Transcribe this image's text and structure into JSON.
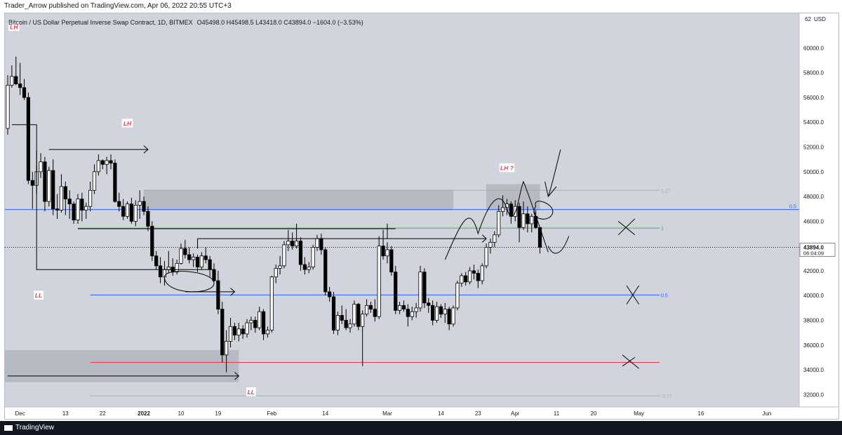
{
  "header": {
    "published": "Trader_Arrow published on TradingView.com, Apr 06, 2022 20:55 UTC+3"
  },
  "chart_data": {
    "type": "candlestick",
    "title": "Bitcoin / US Dollar Perpetual Inverse Swap Contract, 1D, BITMEX",
    "ohlc_text": "O45498.0 H45498.5 L43418.0 C43894.0 −1604.0 (−3.53%)",
    "currency": "USD",
    "price_axis_top_label": "62",
    "y_ticks": [
      60000,
      58000,
      56000,
      54000,
      52000,
      50000,
      48000,
      46000,
      44000,
      42000,
      40000,
      38000,
      36000,
      34000,
      32000
    ],
    "ylim": [
      31000,
      62800
    ],
    "x_ticks": [
      {
        "label": "Dec",
        "bar": 3,
        "bold": false
      },
      {
        "label": "13",
        "bar": 14,
        "bold": false
      },
      {
        "label": "22",
        "bar": 23,
        "bold": false
      },
      {
        "label": "2022",
        "bar": 33,
        "bold": true
      },
      {
        "label": "10",
        "bar": 42,
        "bold": false
      },
      {
        "label": "19",
        "bar": 51,
        "bold": false
      },
      {
        "label": "Feb",
        "bar": 64,
        "bold": false
      },
      {
        "label": "14",
        "bar": 77,
        "bold": false
      },
      {
        "label": "Mar",
        "bar": 92,
        "bold": false
      },
      {
        "label": "14",
        "bar": 105,
        "bold": false
      },
      {
        "label": "23",
        "bar": 114,
        "bold": false
      },
      {
        "label": "Apr",
        "bar": 123,
        "bold": false
      },
      {
        "label": "11",
        "bar": 133,
        "bold": false
      },
      {
        "label": "20",
        "bar": 142,
        "bold": false
      },
      {
        "label": "May",
        "bar": 153,
        "bold": false
      },
      {
        "label": "16",
        "bar": 168,
        "bold": false
      },
      {
        "label": "Jun",
        "bar": 184,
        "bold": false
      }
    ],
    "last_price": {
      "value": 43894,
      "label": "43894.0",
      "countdown": "06:04:09"
    },
    "candles": [
      [
        53500,
        57800,
        53000,
        57000
      ],
      [
        57000,
        58600,
        56800,
        57700
      ],
      [
        57700,
        59300,
        57000,
        57100
      ],
      [
        57100,
        58800,
        56200,
        56800
      ],
      [
        56800,
        57500,
        55800,
        56000
      ],
      [
        56000,
        56400,
        49000,
        49300
      ],
      [
        49300,
        50000,
        47000,
        48900
      ],
      [
        48900,
        50500,
        48200,
        50000
      ],
      [
        50000,
        51500,
        49500,
        50800
      ],
      [
        50800,
        51200,
        46800,
        47600
      ],
      [
        47600,
        50400,
        47200,
        50100
      ],
      [
        50100,
        51000,
        46500,
        47000
      ],
      [
        47000,
        48200,
        46200,
        46900
      ],
      [
        46900,
        49800,
        46700,
        48800
      ],
      [
        48800,
        49200,
        46500,
        47800
      ],
      [
        47800,
        48500,
        46200,
        47400
      ],
      [
        47400,
        47600,
        45800,
        46100
      ],
      [
        46100,
        48200,
        45800,
        47800
      ],
      [
        47800,
        48300,
        46000,
        46900
      ],
      [
        46900,
        47500,
        46200,
        47200
      ],
      [
        47200,
        49200,
        46800,
        48500
      ],
      [
        48500,
        50600,
        48200,
        50000
      ],
      [
        50000,
        51400,
        49700,
        50900
      ],
      [
        50900,
        51000,
        50200,
        50600
      ],
      [
        50600,
        51200,
        49800,
        50900
      ],
      [
        50900,
        51400,
        50200,
        50700
      ],
      [
        50700,
        51000,
        47500,
        47600
      ],
      [
        47600,
        48300,
        46800,
        47200
      ],
      [
        47200,
        47800,
        46100,
        46400
      ],
      [
        46400,
        47600,
        46200,
        47400
      ],
      [
        47400,
        47900,
        45800,
        46000
      ],
      [
        46000,
        47700,
        45600,
        47300
      ],
      [
        47300,
        48500,
        46200,
        47600
      ],
      [
        47600,
        48000,
        46500,
        46800
      ],
      [
        46800,
        47200,
        45200,
        45600
      ],
      [
        45600,
        46000,
        42800,
        43200
      ],
      [
        43200,
        43600,
        42100,
        42400
      ],
      [
        42400,
        43100,
        41000,
        41500
      ],
      [
        41500,
        42800,
        40800,
        42100
      ],
      [
        42100,
        43600,
        41800,
        42300
      ],
      [
        42300,
        43000,
        41600,
        41900
      ],
      [
        41900,
        42900,
        41700,
        42600
      ],
      [
        42600,
        44200,
        42500,
        43800
      ],
      [
        43800,
        44500,
        43000,
        43300
      ],
      [
        43300,
        43900,
        42600,
        42900
      ],
      [
        42900,
        43400,
        42300,
        43100
      ],
      [
        43100,
        43300,
        41900,
        42300
      ],
      [
        42300,
        43500,
        42100,
        43200
      ],
      [
        43200,
        43900,
        42600,
        42900
      ],
      [
        42900,
        43200,
        41500,
        42100
      ],
      [
        42100,
        42600,
        41000,
        41200
      ],
      [
        41200,
        42000,
        38500,
        38900
      ],
      [
        38900,
        39500,
        34600,
        35200
      ],
      [
        35200,
        37200,
        33800,
        36300
      ],
      [
        36300,
        38200,
        35800,
        37500
      ],
      [
        37500,
        37800,
        36400,
        36800
      ],
      [
        36800,
        37800,
        36300,
        37300
      ],
      [
        37300,
        37600,
        36500,
        36900
      ],
      [
        36900,
        38100,
        36600,
        37800
      ],
      [
        37800,
        38300,
        37200,
        38000
      ],
      [
        38000,
        38300,
        37000,
        37400
      ],
      [
        37400,
        39100,
        37200,
        38700
      ],
      [
        38700,
        38900,
        36400,
        36900
      ],
      [
        36900,
        37500,
        36600,
        37200
      ],
      [
        37200,
        41600,
        37000,
        41500
      ],
      [
        41500,
        42500,
        41000,
        42200
      ],
      [
        42200,
        43200,
        41700,
        42400
      ],
      [
        42400,
        44400,
        42200,
        44100
      ],
      [
        44100,
        45300,
        43600,
        44400
      ],
      [
        44400,
        45100,
        43700,
        44000
      ],
      [
        44000,
        45800,
        43800,
        44400
      ],
      [
        44400,
        44700,
        42000,
        42500
      ],
      [
        42500,
        43100,
        41700,
        42100
      ],
      [
        42100,
        42700,
        41800,
        42300
      ],
      [
        42300,
        44100,
        42100,
        43900
      ],
      [
        43900,
        44900,
        43600,
        44600
      ],
      [
        44600,
        45000,
        43300,
        43700
      ],
      [
        43700,
        43900,
        40000,
        40300
      ],
      [
        40300,
        40700,
        39500,
        39900
      ],
      [
        39900,
        40300,
        36900,
        37200
      ],
      [
        37200,
        38700,
        36800,
        38400
      ],
      [
        38400,
        39200,
        37700,
        38000
      ],
      [
        38000,
        38900,
        37200,
        37400
      ],
      [
        37400,
        38100,
        37000,
        37700
      ],
      [
        37700,
        39600,
        37500,
        39300
      ],
      [
        39300,
        39400,
        37200,
        37500
      ],
      [
        37500,
        38800,
        34300,
        38500
      ],
      [
        38500,
        39700,
        38300,
        39200
      ],
      [
        39200,
        39500,
        38600,
        38900
      ],
      [
        38900,
        39700,
        37900,
        38300
      ],
      [
        38300,
        44800,
        38100,
        44000
      ],
      [
        44000,
        45300,
        42900,
        43200
      ],
      [
        43200,
        44300,
        42600,
        43700
      ],
      [
        43700,
        44000,
        41600,
        41900
      ],
      [
        41900,
        42400,
        38500,
        38800
      ],
      [
        38800,
        39500,
        38500,
        39200
      ],
      [
        39200,
        39600,
        38700,
        38900
      ],
      [
        38900,
        39300,
        37500,
        38300
      ],
      [
        38300,
        39100,
        38000,
        38700
      ],
      [
        38700,
        39400,
        38200,
        39000
      ],
      [
        39000,
        42400,
        38700,
        41900
      ],
      [
        41900,
        42200,
        39000,
        39400
      ],
      [
        39400,
        39800,
        38600,
        39200
      ],
      [
        39200,
        39600,
        37600,
        38000
      ],
      [
        38000,
        39500,
        37800,
        39100
      ],
      [
        39100,
        39300,
        38200,
        38500
      ],
      [
        38500,
        39400,
        37800,
        38900
      ],
      [
        38900,
        39100,
        37200,
        37700
      ],
      [
        37700,
        39200,
        37500,
        39000
      ],
      [
        39000,
        41200,
        38800,
        41000
      ],
      [
        41000,
        41800,
        40700,
        41600
      ],
      [
        41600,
        41900,
        40800,
        41100
      ],
      [
        41100,
        42300,
        40900,
        42000
      ],
      [
        42000,
        42500,
        41300,
        41800
      ],
      [
        41800,
        42100,
        40600,
        41200
      ],
      [
        41200,
        42600,
        40900,
        42400
      ],
      [
        42400,
        44200,
        42200,
        43900
      ],
      [
        43900,
        44600,
        43400,
        44300
      ],
      [
        44300,
        45200,
        43900,
        44900
      ],
      [
        44900,
        47300,
        44700,
        46800
      ],
      [
        46800,
        48100,
        46400,
        47100
      ],
      [
        47100,
        47800,
        46500,
        47400
      ],
      [
        47400,
        47600,
        45800,
        46400
      ],
      [
        46400,
        47700,
        46000,
        47200
      ],
      [
        47200,
        47500,
        44300,
        45500
      ],
      [
        45500,
        47600,
        45300,
        46600
      ],
      [
        46600,
        47200,
        45100,
        45800
      ],
      [
        45800,
        46600,
        45100,
        46400
      ],
      [
        46400,
        46900,
        45400,
        45500
      ],
      [
        45500,
        45500,
        43400,
        43900
      ]
    ],
    "levels": [
      {
        "price": 46950,
        "color": "#2962ff",
        "label": "0.5",
        "side": "axis"
      },
      {
        "price": 40050,
        "color": "#2962ff",
        "label": "0.5",
        "side": "end"
      },
      {
        "price": 34600,
        "color": "#f23645",
        "label": "",
        "side": "none"
      },
      {
        "price": 48500,
        "color": "#a9acb3",
        "label": "1.27",
        "side": "end"
      },
      {
        "price": 45450,
        "color": "#4caf50",
        "label": "1",
        "side": "end"
      },
      {
        "price": 31900,
        "color": "#a9acb3",
        "label": "-0.27",
        "side": "end"
      }
    ],
    "labels": {
      "lh_1": "LH",
      "lh_2": "LH",
      "lh_3": "LH ?",
      "ll_1": "LL",
      "ll_2": "LL"
    },
    "colors": {
      "background": "#d1d4dc",
      "up": "#ffffff",
      "down": "#000000",
      "zone": "#b2b5be",
      "label_text": "#f23645"
    }
  },
  "footer": {
    "brand": "TradingView"
  }
}
